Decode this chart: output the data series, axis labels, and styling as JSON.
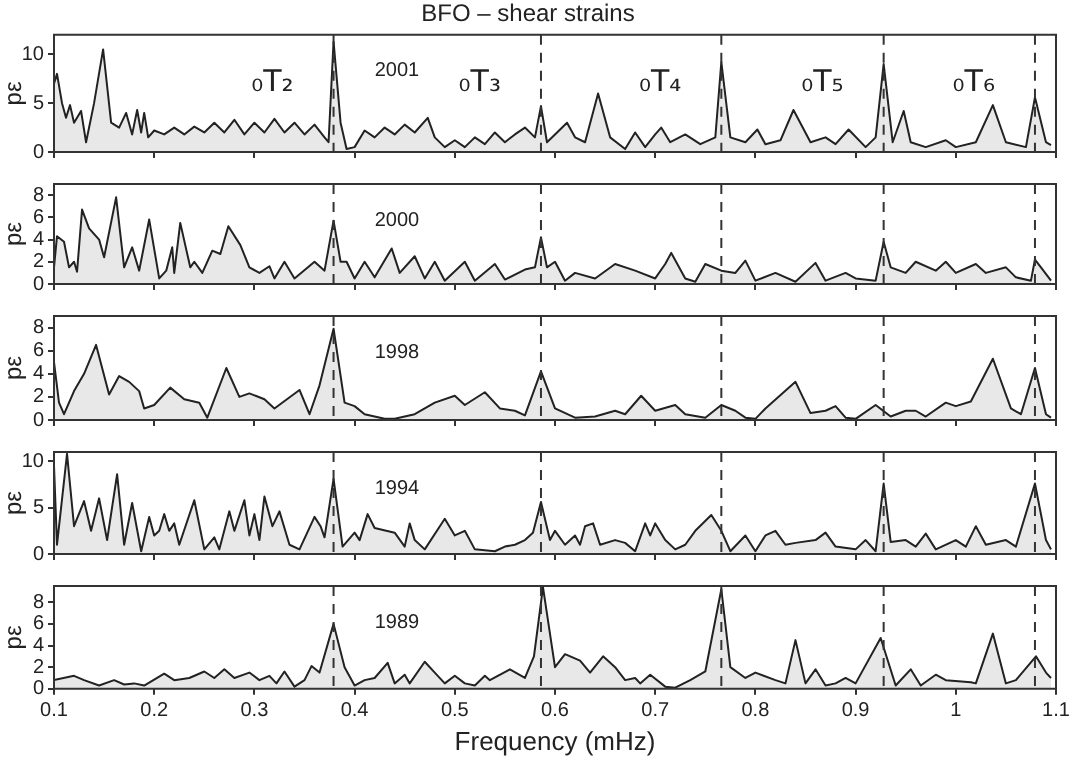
{
  "chart_data": [
    {
      "type": "area",
      "title": "BFO – shear strains",
      "ylabel": "pε",
      "xlim": [
        0.1,
        1.1
      ],
      "xticks": [
        0.1,
        0.2,
        0.3,
        0.4,
        0.5,
        0.6,
        0.7,
        0.8,
        0.9,
        1,
        1.1
      ],
      "ylim": [
        0,
        12
      ],
      "yticks": [
        0,
        5,
        10
      ],
      "tick_labels": "y",
      "annotations": [
        "2001"
      ],
      "ref_lines": [
        {
          "axis": "x",
          "value": 0.379,
          "label": "₀T₂",
          "line_style": "dashed",
          "color": "#333333"
        },
        {
          "axis": "x",
          "value": 0.586,
          "label": "₀T₃",
          "line_style": "dashed",
          "color": "#333333"
        },
        {
          "axis": "x",
          "value": 0.766,
          "label": "₀T₄",
          "line_style": "dashed",
          "color": "#333333"
        },
        {
          "axis": "x",
          "value": 0.928,
          "label": "₀T₅",
          "line_style": "dashed",
          "color": "#333333"
        },
        {
          "axis": "x",
          "value": 1.079,
          "label": "₀T₆",
          "line_style": "dashed",
          "color": "#333333"
        }
      ],
      "x": [
        0.1,
        0.103,
        0.108,
        0.112,
        0.116,
        0.12,
        0.127,
        0.132,
        0.14,
        0.149,
        0.157,
        0.165,
        0.172,
        0.178,
        0.183,
        0.187,
        0.19,
        0.194,
        0.2,
        0.21,
        0.22,
        0.23,
        0.24,
        0.25,
        0.26,
        0.27,
        0.28,
        0.29,
        0.3,
        0.31,
        0.32,
        0.33,
        0.34,
        0.35,
        0.36,
        0.37,
        0.374,
        0.379,
        0.386,
        0.392,
        0.4,
        0.41,
        0.42,
        0.43,
        0.44,
        0.45,
        0.46,
        0.473,
        0.48,
        0.49,
        0.5,
        0.51,
        0.52,
        0.53,
        0.54,
        0.55,
        0.56,
        0.57,
        0.58,
        0.586,
        0.592,
        0.6,
        0.612,
        0.62,
        0.63,
        0.643,
        0.655,
        0.67,
        0.68,
        0.69,
        0.7,
        0.706,
        0.715,
        0.73,
        0.745,
        0.76,
        0.766,
        0.775,
        0.79,
        0.802,
        0.81,
        0.825,
        0.838,
        0.855,
        0.87,
        0.88,
        0.893,
        0.91,
        0.92,
        0.928,
        0.937,
        0.948,
        0.955,
        0.97,
        0.99,
        1.0,
        1.02,
        1.037,
        1.05,
        1.07,
        1.079,
        1.09,
        1.095
      ],
      "series": [
        {
          "color": "#222222",
          "values": [
            7,
            8,
            5,
            3.5,
            4.8,
            3,
            4.2,
            1,
            5,
            10.5,
            3,
            2.5,
            4,
            1.8,
            4.3,
            2,
            4,
            1.5,
            2.2,
            1.8,
            2.5,
            1.8,
            2.6,
            2,
            3,
            2,
            3.3,
            1.8,
            3,
            2,
            3.4,
            2,
            3,
            1.8,
            2.8,
            1.5,
            1,
            11.3,
            3,
            0.3,
            0.5,
            2.2,
            1.5,
            2.5,
            1.8,
            2.8,
            2,
            3.5,
            1.5,
            0.5,
            1.2,
            0.5,
            1.5,
            0.8,
            2,
            1,
            1.8,
            2.5,
            1.5,
            4.7,
            1,
            1.8,
            3,
            1.5,
            1,
            6,
            1.5,
            0.3,
            2,
            0.5,
            1.8,
            2.5,
            1,
            1.8,
            0.8,
            1.5,
            9.2,
            1.5,
            1,
            2.3,
            0.8,
            1.2,
            4.3,
            1,
            1.5,
            0.8,
            2.3,
            0.5,
            1.5,
            9,
            1,
            4.2,
            1,
            0.5,
            1.2,
            0.5,
            1,
            4.8,
            1,
            0.5,
            5.6,
            1,
            0.7
          ]
        }
      ]
    },
    {
      "type": "area",
      "ylabel": "pε",
      "xlim": [
        0.1,
        1.1
      ],
      "xticks": [
        0.1,
        0.2,
        0.3,
        0.4,
        0.5,
        0.6,
        0.7,
        0.8,
        0.9,
        1,
        1.1
      ],
      "ylim": [
        0,
        9
      ],
      "yticks": [
        0,
        2,
        4,
        6,
        8
      ],
      "tick_labels": "y",
      "annotations": [
        "2000"
      ],
      "ref_lines": [
        {
          "axis": "x",
          "value": 0.379,
          "line_style": "dashed",
          "color": "#333333"
        },
        {
          "axis": "x",
          "value": 0.586,
          "line_style": "dashed",
          "color": "#333333"
        },
        {
          "axis": "x",
          "value": 0.766,
          "line_style": "dashed",
          "color": "#333333"
        },
        {
          "axis": "x",
          "value": 0.928,
          "line_style": "dashed",
          "color": "#333333"
        },
        {
          "axis": "x",
          "value": 1.079,
          "line_style": "dashed",
          "color": "#333333"
        }
      ],
      "x": [
        0.1,
        0.103,
        0.11,
        0.115,
        0.12,
        0.123,
        0.128,
        0.135,
        0.145,
        0.15,
        0.162,
        0.17,
        0.178,
        0.185,
        0.195,
        0.205,
        0.212,
        0.218,
        0.22,
        0.226,
        0.236,
        0.24,
        0.248,
        0.258,
        0.266,
        0.274,
        0.286,
        0.295,
        0.305,
        0.315,
        0.32,
        0.33,
        0.34,
        0.36,
        0.37,
        0.379,
        0.386,
        0.392,
        0.4,
        0.41,
        0.42,
        0.437,
        0.445,
        0.46,
        0.47,
        0.48,
        0.49,
        0.51,
        0.52,
        0.54,
        0.55,
        0.57,
        0.58,
        0.586,
        0.592,
        0.6,
        0.61,
        0.62,
        0.64,
        0.66,
        0.68,
        0.7,
        0.71,
        0.716,
        0.73,
        0.74,
        0.75,
        0.766,
        0.78,
        0.79,
        0.8,
        0.82,
        0.84,
        0.86,
        0.87,
        0.89,
        0.9,
        0.92,
        0.928,
        0.935,
        0.95,
        0.96,
        0.98,
        0.99,
        1.0,
        1.02,
        1.03,
        1.05,
        1.06,
        1.075,
        1.079,
        1.085,
        1.095
      ],
      "series": [
        {
          "color": "#222222",
          "values": [
            1.5,
            4.3,
            3.8,
            1.5,
            2,
            1.1,
            6.7,
            5,
            4,
            2.4,
            7.8,
            1.5,
            3.3,
            1.2,
            5.8,
            0.5,
            1.2,
            3.3,
            1,
            5.5,
            1.5,
            2,
            1,
            3,
            2.7,
            5.2,
            3.5,
            1.5,
            1,
            1.6,
            0.5,
            2,
            0.5,
            2,
            1.2,
            5.7,
            2,
            2,
            0.5,
            2,
            0.6,
            3.2,
            1,
            2.5,
            0.5,
            2,
            0.3,
            2,
            0.3,
            1.8,
            0.4,
            1.3,
            1.5,
            4.2,
            1.5,
            2,
            0.3,
            1,
            0.5,
            1.8,
            1.2,
            0.5,
            1.8,
            2.8,
            0.5,
            0.2,
            1.8,
            1.2,
            1,
            2.1,
            0.3,
            1,
            0.2,
            1.9,
            0.3,
            1,
            0.5,
            0.3,
            3.8,
            1.5,
            1,
            2,
            1.2,
            2,
            1,
            1.8,
            1,
            1.5,
            0.6,
            0.3,
            2.2,
            1.5,
            0.3
          ]
        }
      ]
    },
    {
      "type": "area",
      "ylabel": "pε",
      "xlim": [
        0.1,
        1.1
      ],
      "xticks": [
        0.1,
        0.2,
        0.3,
        0.4,
        0.5,
        0.6,
        0.7,
        0.8,
        0.9,
        1,
        1.1
      ],
      "ylim": [
        0,
        9
      ],
      "yticks": [
        0,
        2,
        4,
        6,
        8
      ],
      "tick_labels": "y",
      "annotations": [
        "1998"
      ],
      "ref_lines": [
        {
          "axis": "x",
          "value": 0.379,
          "line_style": "dashed",
          "color": "#333333"
        },
        {
          "axis": "x",
          "value": 0.586,
          "line_style": "dashed",
          "color": "#333333"
        },
        {
          "axis": "x",
          "value": 0.766,
          "line_style": "dashed",
          "color": "#333333"
        },
        {
          "axis": "x",
          "value": 0.928,
          "line_style": "dashed",
          "color": "#333333"
        },
        {
          "axis": "x",
          "value": 1.079,
          "line_style": "dashed",
          "color": "#333333"
        }
      ],
      "x": [
        0.1,
        0.105,
        0.11,
        0.12,
        0.13,
        0.142,
        0.155,
        0.165,
        0.175,
        0.185,
        0.19,
        0.2,
        0.216,
        0.23,
        0.245,
        0.253,
        0.272,
        0.285,
        0.295,
        0.31,
        0.32,
        0.345,
        0.355,
        0.365,
        0.379,
        0.39,
        0.4,
        0.41,
        0.43,
        0.44,
        0.46,
        0.48,
        0.5,
        0.51,
        0.53,
        0.545,
        0.56,
        0.57,
        0.586,
        0.6,
        0.62,
        0.64,
        0.66,
        0.67,
        0.686,
        0.7,
        0.72,
        0.73,
        0.75,
        0.766,
        0.78,
        0.79,
        0.8,
        0.81,
        0.84,
        0.855,
        0.87,
        0.88,
        0.89,
        0.9,
        0.92,
        0.935,
        0.95,
        0.96,
        0.97,
        0.99,
        1.0,
        1.015,
        1.037,
        1.055,
        1.065,
        1.079,
        1.09,
        1.095
      ],
      "series": [
        {
          "color": "#222222",
          "values": [
            5,
            1.5,
            0.5,
            2.5,
            4,
            6.5,
            2.2,
            3.8,
            3.3,
            2.5,
            1,
            1.3,
            2.8,
            1.8,
            1.5,
            0.2,
            4.5,
            2,
            2.3,
            1.8,
            1,
            2.6,
            0.5,
            3,
            7.9,
            1.5,
            1.2,
            0.5,
            0.1,
            0.1,
            0.5,
            1.5,
            2.1,
            1.3,
            2.4,
            1,
            0.8,
            0.4,
            4.2,
            1,
            0.2,
            0.3,
            0.8,
            0.5,
            2.1,
            0.8,
            1.3,
            0.5,
            0.2,
            1.3,
            0.8,
            0.2,
            0.1,
            1,
            3.3,
            0.6,
            0.8,
            1.2,
            0.2,
            0.1,
            1.3,
            0.3,
            0.8,
            0.8,
            0.3,
            1.5,
            1.2,
            1.6,
            5.3,
            1,
            0.5,
            4.5,
            0.5,
            0.2
          ]
        }
      ]
    },
    {
      "type": "area",
      "ylabel": "pε",
      "xlim": [
        0.1,
        1.1
      ],
      "xticks": [
        0.1,
        0.2,
        0.3,
        0.4,
        0.5,
        0.6,
        0.7,
        0.8,
        0.9,
        1,
        1.1
      ],
      "ylim": [
        0,
        11
      ],
      "yticks": [
        0,
        5,
        10
      ],
      "tick_labels": "y",
      "annotations": [
        "1994"
      ],
      "ref_lines": [
        {
          "axis": "x",
          "value": 0.379,
          "line_style": "dashed",
          "color": "#333333"
        },
        {
          "axis": "x",
          "value": 0.586,
          "line_style": "dashed",
          "color": "#333333"
        },
        {
          "axis": "x",
          "value": 0.766,
          "line_style": "dashed",
          "color": "#333333"
        },
        {
          "axis": "x",
          "value": 0.928,
          "line_style": "dashed",
          "color": "#333333"
        },
        {
          "axis": "x",
          "value": 1.079,
          "line_style": "dashed",
          "color": "#333333"
        }
      ],
      "x": [
        0.1,
        0.103,
        0.113,
        0.12,
        0.13,
        0.137,
        0.145,
        0.153,
        0.163,
        0.17,
        0.178,
        0.187,
        0.195,
        0.2,
        0.205,
        0.21,
        0.215,
        0.22,
        0.225,
        0.24,
        0.25,
        0.26,
        0.265,
        0.275,
        0.28,
        0.29,
        0.295,
        0.3,
        0.305,
        0.31,
        0.318,
        0.325,
        0.335,
        0.345,
        0.36,
        0.366,
        0.37,
        0.379,
        0.388,
        0.4,
        0.405,
        0.413,
        0.42,
        0.44,
        0.45,
        0.455,
        0.46,
        0.47,
        0.49,
        0.5,
        0.51,
        0.52,
        0.54,
        0.55,
        0.56,
        0.57,
        0.578,
        0.586,
        0.595,
        0.6,
        0.61,
        0.62,
        0.625,
        0.63,
        0.638,
        0.645,
        0.66,
        0.67,
        0.68,
        0.69,
        0.695,
        0.7,
        0.71,
        0.72,
        0.73,
        0.74,
        0.756,
        0.766,
        0.775,
        0.79,
        0.8,
        0.81,
        0.82,
        0.83,
        0.84,
        0.86,
        0.87,
        0.88,
        0.9,
        0.91,
        0.92,
        0.928,
        0.935,
        0.95,
        0.96,
        0.97,
        0.98,
        1.0,
        1.01,
        1.02,
        1.03,
        1.05,
        1.06,
        1.079,
        1.09,
        1.095
      ],
      "series": [
        {
          "color": "#222222",
          "values": [
            9.5,
            1,
            10.8,
            3,
            5.7,
            2.5,
            6,
            1.5,
            8.6,
            1,
            5.5,
            0.3,
            4,
            2,
            2.5,
            4.3,
            2.5,
            3.3,
            1,
            5.8,
            0.5,
            1.8,
            0.5,
            4.6,
            2.5,
            5.8,
            2,
            4.3,
            1.5,
            6.2,
            3,
            4.6,
            1,
            0.5,
            4,
            3,
            1.8,
            8.1,
            0.8,
            2.3,
            1.5,
            4.3,
            2.8,
            2.3,
            0.8,
            3.3,
            1.5,
            0.5,
            3.8,
            2,
            2.5,
            0.5,
            0.3,
            0.8,
            1,
            1.5,
            2.3,
            5.6,
            1.5,
            2.5,
            1,
            2,
            1,
            3,
            3.3,
            1,
            1.5,
            1.2,
            0.3,
            3.3,
            2,
            3.3,
            1.5,
            0.5,
            1,
            2.5,
            4.2,
            2.5,
            0.3,
            2,
            0.3,
            2,
            2.5,
            1,
            1.2,
            1.5,
            2.3,
            0.8,
            0.5,
            1.5,
            0.3,
            7.6,
            1.3,
            1.5,
            0.8,
            2.2,
            0.5,
            1.5,
            0.8,
            3,
            1,
            1.5,
            0.8,
            7.6,
            1.5,
            0.5
          ]
        }
      ]
    },
    {
      "type": "area",
      "ylabel": "pε",
      "xlabel": "Frequency (mHz)",
      "xlim": [
        0.1,
        1.1
      ],
      "xticks": [
        0.1,
        0.2,
        0.3,
        0.4,
        0.5,
        0.6,
        0.7,
        0.8,
        0.9,
        1,
        1.1
      ],
      "ylim": [
        0,
        9.5
      ],
      "yticks": [
        0,
        2,
        4,
        6,
        8
      ],
      "annotations": [
        "1989"
      ],
      "ref_lines": [
        {
          "axis": "x",
          "value": 0.379,
          "line_style": "dashed",
          "color": "#333333"
        },
        {
          "axis": "x",
          "value": 0.586,
          "line_style": "dashed",
          "color": "#333333"
        },
        {
          "axis": "x",
          "value": 0.766,
          "line_style": "dashed",
          "color": "#333333"
        },
        {
          "axis": "x",
          "value": 0.928,
          "line_style": "dashed",
          "color": "#333333"
        },
        {
          "axis": "x",
          "value": 1.079,
          "line_style": "dashed",
          "color": "#333333"
        }
      ],
      "x": [
        0.1,
        0.12,
        0.13,
        0.145,
        0.16,
        0.17,
        0.18,
        0.19,
        0.21,
        0.22,
        0.235,
        0.25,
        0.26,
        0.27,
        0.28,
        0.295,
        0.305,
        0.315,
        0.322,
        0.33,
        0.34,
        0.35,
        0.357,
        0.365,
        0.379,
        0.39,
        0.4,
        0.41,
        0.42,
        0.433,
        0.44,
        0.45,
        0.455,
        0.47,
        0.48,
        0.49,
        0.5,
        0.51,
        0.52,
        0.53,
        0.535,
        0.555,
        0.57,
        0.579,
        0.588,
        0.6,
        0.61,
        0.625,
        0.635,
        0.648,
        0.66,
        0.67,
        0.68,
        0.685,
        0.695,
        0.71,
        0.72,
        0.735,
        0.75,
        0.766,
        0.775,
        0.79,
        0.8,
        0.82,
        0.83,
        0.84,
        0.85,
        0.86,
        0.87,
        0.88,
        0.89,
        0.9,
        0.925,
        0.94,
        0.955,
        0.965,
        0.98,
        0.99,
        1.015,
        1.02,
        1.037,
        1.05,
        1.06,
        1.08,
        1.09,
        1.095
      ],
      "series": [
        {
          "color": "#222222",
          "values": [
            0.8,
            1.2,
            0.8,
            0.3,
            0.8,
            0.4,
            0.5,
            0.3,
            1.4,
            0.8,
            1,
            1.6,
            1,
            1.8,
            1,
            1.5,
            0.8,
            1.2,
            0.5,
            1.6,
            0.2,
            0.8,
            2.1,
            1.5,
            6,
            2,
            0.3,
            0.8,
            1,
            2.4,
            0.5,
            1.3,
            0.5,
            2.5,
            1.5,
            0.5,
            1.2,
            0.5,
            0.3,
            1.2,
            0.8,
            1.8,
            1,
            3,
            9.4,
            2,
            3.2,
            2.6,
            1.5,
            3,
            2,
            0.8,
            1,
            0.5,
            1.3,
            0.2,
            0.1,
            0.8,
            1.6,
            9.2,
            2,
            1,
            1.5,
            0.8,
            0.5,
            4.5,
            0.5,
            1.8,
            0.3,
            0.5,
            1,
            0.5,
            4.7,
            0.3,
            1.8,
            0.3,
            1.3,
            0.8,
            0.6,
            0.5,
            5.1,
            0.5,
            0.8,
            3,
            1.5,
            1
          ]
        }
      ]
    }
  ]
}
